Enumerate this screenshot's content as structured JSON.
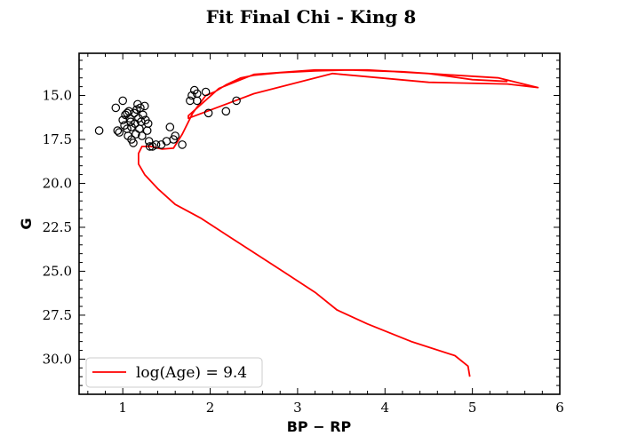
{
  "chart_data": {
    "type": "scatter",
    "title": "Fit Final Chi - King 8",
    "xlabel": "BP − RP",
    "ylabel": "G",
    "xlim": [
      0.5,
      6.0
    ],
    "ylim": [
      32.0,
      12.6
    ],
    "y_inverted": true,
    "x_ticks": [
      "1",
      "2",
      "3",
      "4",
      "5",
      "6"
    ],
    "y_ticks": [
      "15.0",
      "17.5",
      "20.0",
      "22.5",
      "25.0",
      "27.5",
      "30.0"
    ],
    "grid": false,
    "legend": {
      "position": "lower-left",
      "entries": [
        "log(Age) = 9.4"
      ]
    },
    "colors": {
      "isochrone": "#ff0000",
      "points": "#000000"
    },
    "series": [
      {
        "kind": "scatter",
        "marker": "open-circle",
        "points": [
          [
            0.73,
            17.0
          ],
          [
            0.92,
            15.7
          ],
          [
            0.94,
            17.0
          ],
          [
            0.96,
            17.1
          ],
          [
            1.0,
            15.3
          ],
          [
            1.0,
            16.4
          ],
          [
            1.02,
            16.7
          ],
          [
            1.03,
            16.1
          ],
          [
            1.05,
            16.0
          ],
          [
            1.05,
            16.9
          ],
          [
            1.06,
            17.3
          ],
          [
            1.07,
            15.9
          ],
          [
            1.08,
            16.3
          ],
          [
            1.09,
            16.5
          ],
          [
            1.1,
            17.5
          ],
          [
            1.1,
            16.8
          ],
          [
            1.12,
            17.7
          ],
          [
            1.13,
            16.0
          ],
          [
            1.14,
            16.6
          ],
          [
            1.15,
            17.2
          ],
          [
            1.16,
            15.8
          ],
          [
            1.17,
            15.5
          ],
          [
            1.18,
            16.3
          ],
          [
            1.19,
            16.9
          ],
          [
            1.2,
            15.7
          ],
          [
            1.21,
            16.5
          ],
          [
            1.22,
            17.3
          ],
          [
            1.23,
            16.1
          ],
          [
            1.25,
            15.6
          ],
          [
            1.26,
            16.4
          ],
          [
            1.28,
            17.0
          ],
          [
            1.29,
            16.6
          ],
          [
            1.3,
            17.6
          ],
          [
            1.31,
            17.9
          ],
          [
            1.34,
            17.9
          ],
          [
            1.38,
            17.8
          ],
          [
            1.44,
            17.8
          ],
          [
            1.5,
            17.6
          ],
          [
            1.54,
            16.8
          ],
          [
            1.58,
            17.5
          ],
          [
            1.6,
            17.3
          ],
          [
            1.68,
            17.8
          ],
          [
            1.77,
            15.3
          ],
          [
            1.79,
            15.0
          ],
          [
            1.82,
            14.7
          ],
          [
            1.85,
            14.9
          ],
          [
            1.85,
            15.3
          ],
          [
            1.95,
            14.8
          ],
          [
            1.98,
            16.0
          ],
          [
            2.18,
            15.9
          ],
          [
            2.3,
            15.3
          ]
        ]
      },
      {
        "kind": "line",
        "name": "log(Age) = 9.4",
        "points": [
          [
            4.97,
            31.0
          ],
          [
            4.95,
            30.4
          ],
          [
            4.8,
            29.8
          ],
          [
            4.3,
            29.0
          ],
          [
            3.8,
            28.0
          ],
          [
            3.45,
            27.2
          ],
          [
            3.2,
            26.2
          ],
          [
            2.8,
            24.9
          ],
          [
            2.3,
            23.3
          ],
          [
            1.9,
            22.0
          ],
          [
            1.6,
            21.2
          ],
          [
            1.4,
            20.3
          ],
          [
            1.25,
            19.5
          ],
          [
            1.18,
            18.9
          ],
          [
            1.18,
            18.3
          ],
          [
            1.22,
            17.9
          ],
          [
            1.32,
            17.9
          ],
          [
            1.45,
            18.05
          ],
          [
            1.58,
            18.0
          ],
          [
            1.68,
            17.2
          ],
          [
            1.8,
            16.0
          ],
          [
            1.95,
            15.0
          ],
          [
            2.05,
            14.8
          ],
          [
            2.18,
            14.4
          ],
          [
            2.35,
            14.0
          ],
          [
            2.5,
            13.85
          ],
          [
            2.8,
            13.7
          ],
          [
            3.2,
            13.6
          ],
          [
            3.6,
            13.55
          ],
          [
            4.2,
            13.65
          ],
          [
            4.8,
            13.85
          ],
          [
            5.3,
            14.0
          ],
          [
            5.75,
            14.55
          ],
          [
            5.4,
            14.35
          ],
          [
            4.5,
            14.25
          ],
          [
            3.4,
            13.75
          ],
          [
            2.5,
            14.9
          ],
          [
            1.75,
            16.3
          ],
          [
            1.75,
            16.15
          ],
          [
            2.1,
            14.6
          ],
          [
            2.5,
            13.8
          ],
          [
            3.2,
            13.55
          ],
          [
            3.8,
            13.55
          ],
          [
            4.5,
            13.75
          ],
          [
            5.0,
            14.1
          ],
          [
            5.4,
            14.2
          ]
        ]
      }
    ]
  }
}
